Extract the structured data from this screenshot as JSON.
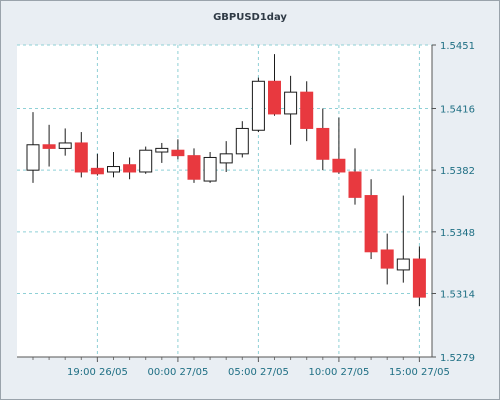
{
  "chart_data": {
    "type": "candlestick",
    "title": "GBPUSD1day",
    "y_ticks": [
      1.5279,
      1.5314,
      1.5348,
      1.5382,
      1.5416,
      1.5451
    ],
    "x_ticks": [
      {
        "label": "19:00 26/05",
        "index": 4
      },
      {
        "label": "00:00 27/05",
        "index": 9
      },
      {
        "label": "05:00 27/05",
        "index": 14
      },
      {
        "label": "10:00 27/05",
        "index": 19
      },
      {
        "label": "15:00 27/05",
        "index": 24
      }
    ],
    "ylim": [
      1.5279,
      1.5451
    ],
    "grid": true,
    "candles": [
      {
        "o": 1.5382,
        "h": 1.5414,
        "l": 1.5375,
        "c": 1.5396
      },
      {
        "o": 1.5396,
        "h": 1.5407,
        "l": 1.5384,
        "c": 1.5394
      },
      {
        "o": 1.5394,
        "h": 1.5405,
        "l": 1.539,
        "c": 1.5397
      },
      {
        "o": 1.5397,
        "h": 1.5403,
        "l": 1.5378,
        "c": 1.5381
      },
      {
        "o": 1.5383,
        "h": 1.5391,
        "l": 1.5379,
        "c": 1.538
      },
      {
        "o": 1.5381,
        "h": 1.5392,
        "l": 1.5378,
        "c": 1.5384
      },
      {
        "o": 1.5385,
        "h": 1.5389,
        "l": 1.5377,
        "c": 1.5381
      },
      {
        "o": 1.5381,
        "h": 1.5395,
        "l": 1.538,
        "c": 1.5393
      },
      {
        "o": 1.5392,
        "h": 1.5397,
        "l": 1.5386,
        "c": 1.5394
      },
      {
        "o": 1.5393,
        "h": 1.5399,
        "l": 1.5388,
        "c": 1.539
      },
      {
        "o": 1.539,
        "h": 1.5394,
        "l": 1.5375,
        "c": 1.5377
      },
      {
        "o": 1.5376,
        "h": 1.5392,
        "l": 1.5375,
        "c": 1.5389
      },
      {
        "o": 1.5386,
        "h": 1.5398,
        "l": 1.5381,
        "c": 1.5391
      },
      {
        "o": 1.5391,
        "h": 1.5409,
        "l": 1.5389,
        "c": 1.5405
      },
      {
        "o": 1.5404,
        "h": 1.5433,
        "l": 1.5403,
        "c": 1.5431
      },
      {
        "o": 1.5431,
        "h": 1.5446,
        "l": 1.5412,
        "c": 1.5413
      },
      {
        "o": 1.5413,
        "h": 1.5434,
        "l": 1.5396,
        "c": 1.5425
      },
      {
        "o": 1.5425,
        "h": 1.5431,
        "l": 1.5398,
        "c": 1.5405
      },
      {
        "o": 1.5405,
        "h": 1.5416,
        "l": 1.5382,
        "c": 1.5388
      },
      {
        "o": 1.5388,
        "h": 1.5411,
        "l": 1.538,
        "c": 1.5381
      },
      {
        "o": 1.5381,
        "h": 1.5394,
        "l": 1.5363,
        "c": 1.5367
      },
      {
        "o": 1.5368,
        "h": 1.5377,
        "l": 1.5333,
        "c": 1.5337
      },
      {
        "o": 1.5338,
        "h": 1.5347,
        "l": 1.5319,
        "c": 1.5328
      },
      {
        "o": 1.5327,
        "h": 1.5368,
        "l": 1.532,
        "c": 1.5333
      },
      {
        "o": 1.5333,
        "h": 1.534,
        "l": 1.5307,
        "c": 1.5312
      }
    ],
    "colors": {
      "up_fill": "#ffffff",
      "down_fill": "#e8393f",
      "outline": "#1a1a1a",
      "grid": "#8fd0d6",
      "plot_bg": "#ffffff",
      "axis_text": "#1f6f84"
    }
  }
}
